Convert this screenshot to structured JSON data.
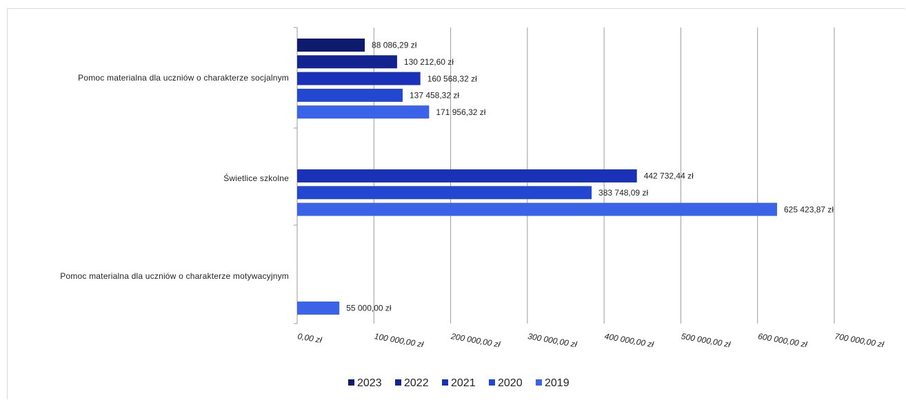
{
  "chart_data": {
    "type": "bar",
    "orientation": "horizontal",
    "categories": [
      "Pomoc materialna dla uczniów o charakterze socjalnym",
      "Świetlice szkolne",
      "Pomoc materialna dla uczniów o charakterze motywacyjnym"
    ],
    "series": [
      {
        "name": "2023",
        "color": "#0e1a6e",
        "values": [
          88086.29,
          null,
          null
        ],
        "labels": [
          "88 086,29  zł",
          "",
          ""
        ]
      },
      {
        "name": "2022",
        "color": "#13238f",
        "values": [
          130212.6,
          null,
          null
        ],
        "labels": [
          "130 212,60  zł",
          "",
          ""
        ]
      },
      {
        "name": "2021",
        "color": "#1a32b8",
        "values": [
          160568.32,
          442732.44,
          null
        ],
        "labels": [
          "160 568,32  zł",
          "442 732,44  zł",
          ""
        ]
      },
      {
        "name": "2020",
        "color": "#2447d2",
        "values": [
          137458.32,
          383748.09,
          null
        ],
        "labels": [
          "137 458,32  zł",
          "383 748,09  zł",
          ""
        ]
      },
      {
        "name": "2019",
        "color": "#3a63e8",
        "values": [
          171956.32,
          625423.87,
          55000.0
        ],
        "labels": [
          "171 956,32  zł",
          "625 423,87  zł",
          "55 000,00  zł"
        ]
      }
    ],
    "xlim": [
      0,
      700000
    ],
    "xticks": [
      0,
      100000,
      200000,
      300000,
      400000,
      500000,
      600000,
      700000
    ],
    "xtick_labels": [
      "0,00 zł",
      "100 000,00 zł",
      "200 000,00 zł",
      "300 000,00 zł",
      "400 000,00 zł",
      "500 000,00 zł",
      "600 000,00 zł",
      "700 000,00 zł"
    ],
    "grid": true,
    "legend_position": "bottom",
    "legend_order": [
      "2023",
      "2022",
      "2021",
      "2020",
      "2019"
    ]
  }
}
